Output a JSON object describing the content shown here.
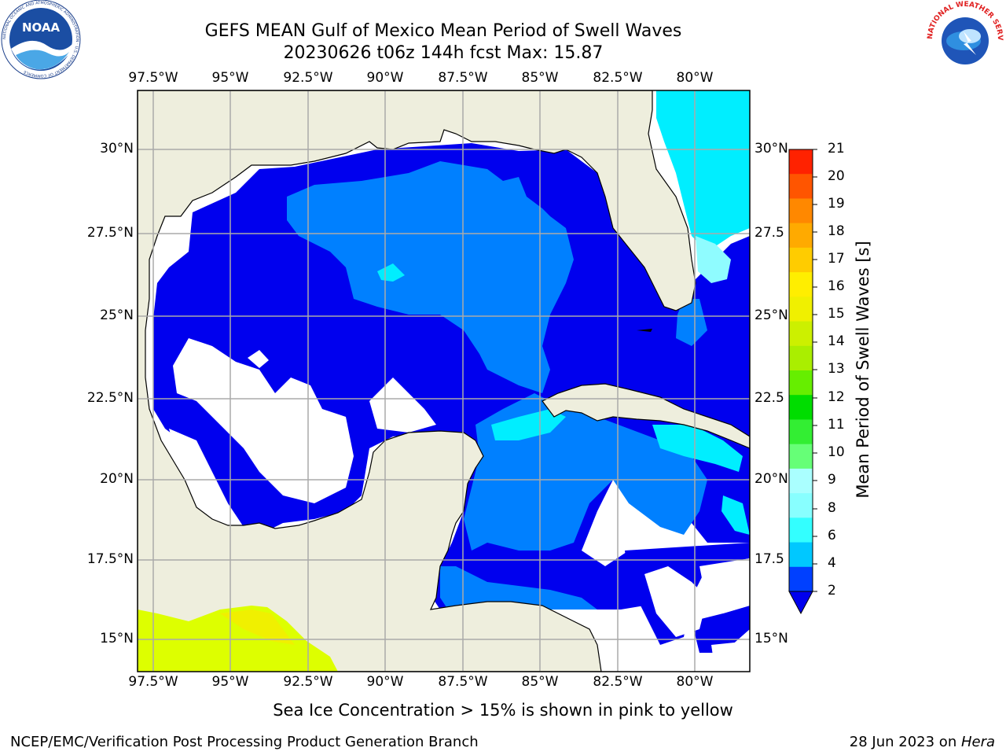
{
  "header": {
    "title_line1": "GEFS MEAN Gulf of Mexico Mean Period of Swell Waves",
    "title_line2": "20230626 t06z 144h fcst   Max: 15.87"
  },
  "logos": {
    "left": {
      "name": "NOAA",
      "ring_text": "NATIONAL OCEANIC AND ATMOSPHERIC ADMINISTRATION · U.S. DEPARTMENT OF COMMERCE"
    },
    "right": {
      "name": "NATIONAL WEATHER SERVICE"
    }
  },
  "map": {
    "lon_labels": [
      "97.5°W",
      "95°W",
      "92.5°W",
      "90°W",
      "87.5°W",
      "85°W",
      "82.5°W",
      "80°W"
    ],
    "lat_labels_left": [
      "30°N",
      "27.5°N",
      "25°N",
      "22.5°N",
      "20°N",
      "17.5°N",
      "15°N"
    ],
    "lat_labels_right": [
      "30°N",
      "27.5",
      "25°N",
      "22.5",
      "20°N",
      "17.5",
      "15°N"
    ],
    "land_color": "#eeeedd",
    "no_data_color": "#ffffff",
    "ice_color": "#ddff00"
  },
  "colorbar": {
    "label": "Mean Period of Swell Waves [s]",
    "ticks": [
      "2",
      "4",
      "6",
      "8",
      "9",
      "10",
      "11",
      "12",
      "13",
      "14",
      "15",
      "16",
      "17",
      "18",
      "19",
      "20",
      "21"
    ],
    "colors": [
      "#0040ff",
      "#00c8ff",
      "#33ffff",
      "#88ffff",
      "#aaffff",
      "#66ff77",
      "#33ee33",
      "#00dd00",
      "#66ee00",
      "#aaee00",
      "#ccf000",
      "#f0f000",
      "#ffee00",
      "#ffcc00",
      "#ffaa00",
      "#ff8800",
      "#ff5500",
      "#ff2200"
    ],
    "extend_color": "#0000ee"
  },
  "legend_note": "Sea Ice Concentration > 15% is shown in pink to yellow",
  "footer": {
    "left": "NCEP/EMC/Verification Post Processing Product Generation Branch",
    "right_date": "28 Jun 2023 on ",
    "right_host": "Hera"
  }
}
